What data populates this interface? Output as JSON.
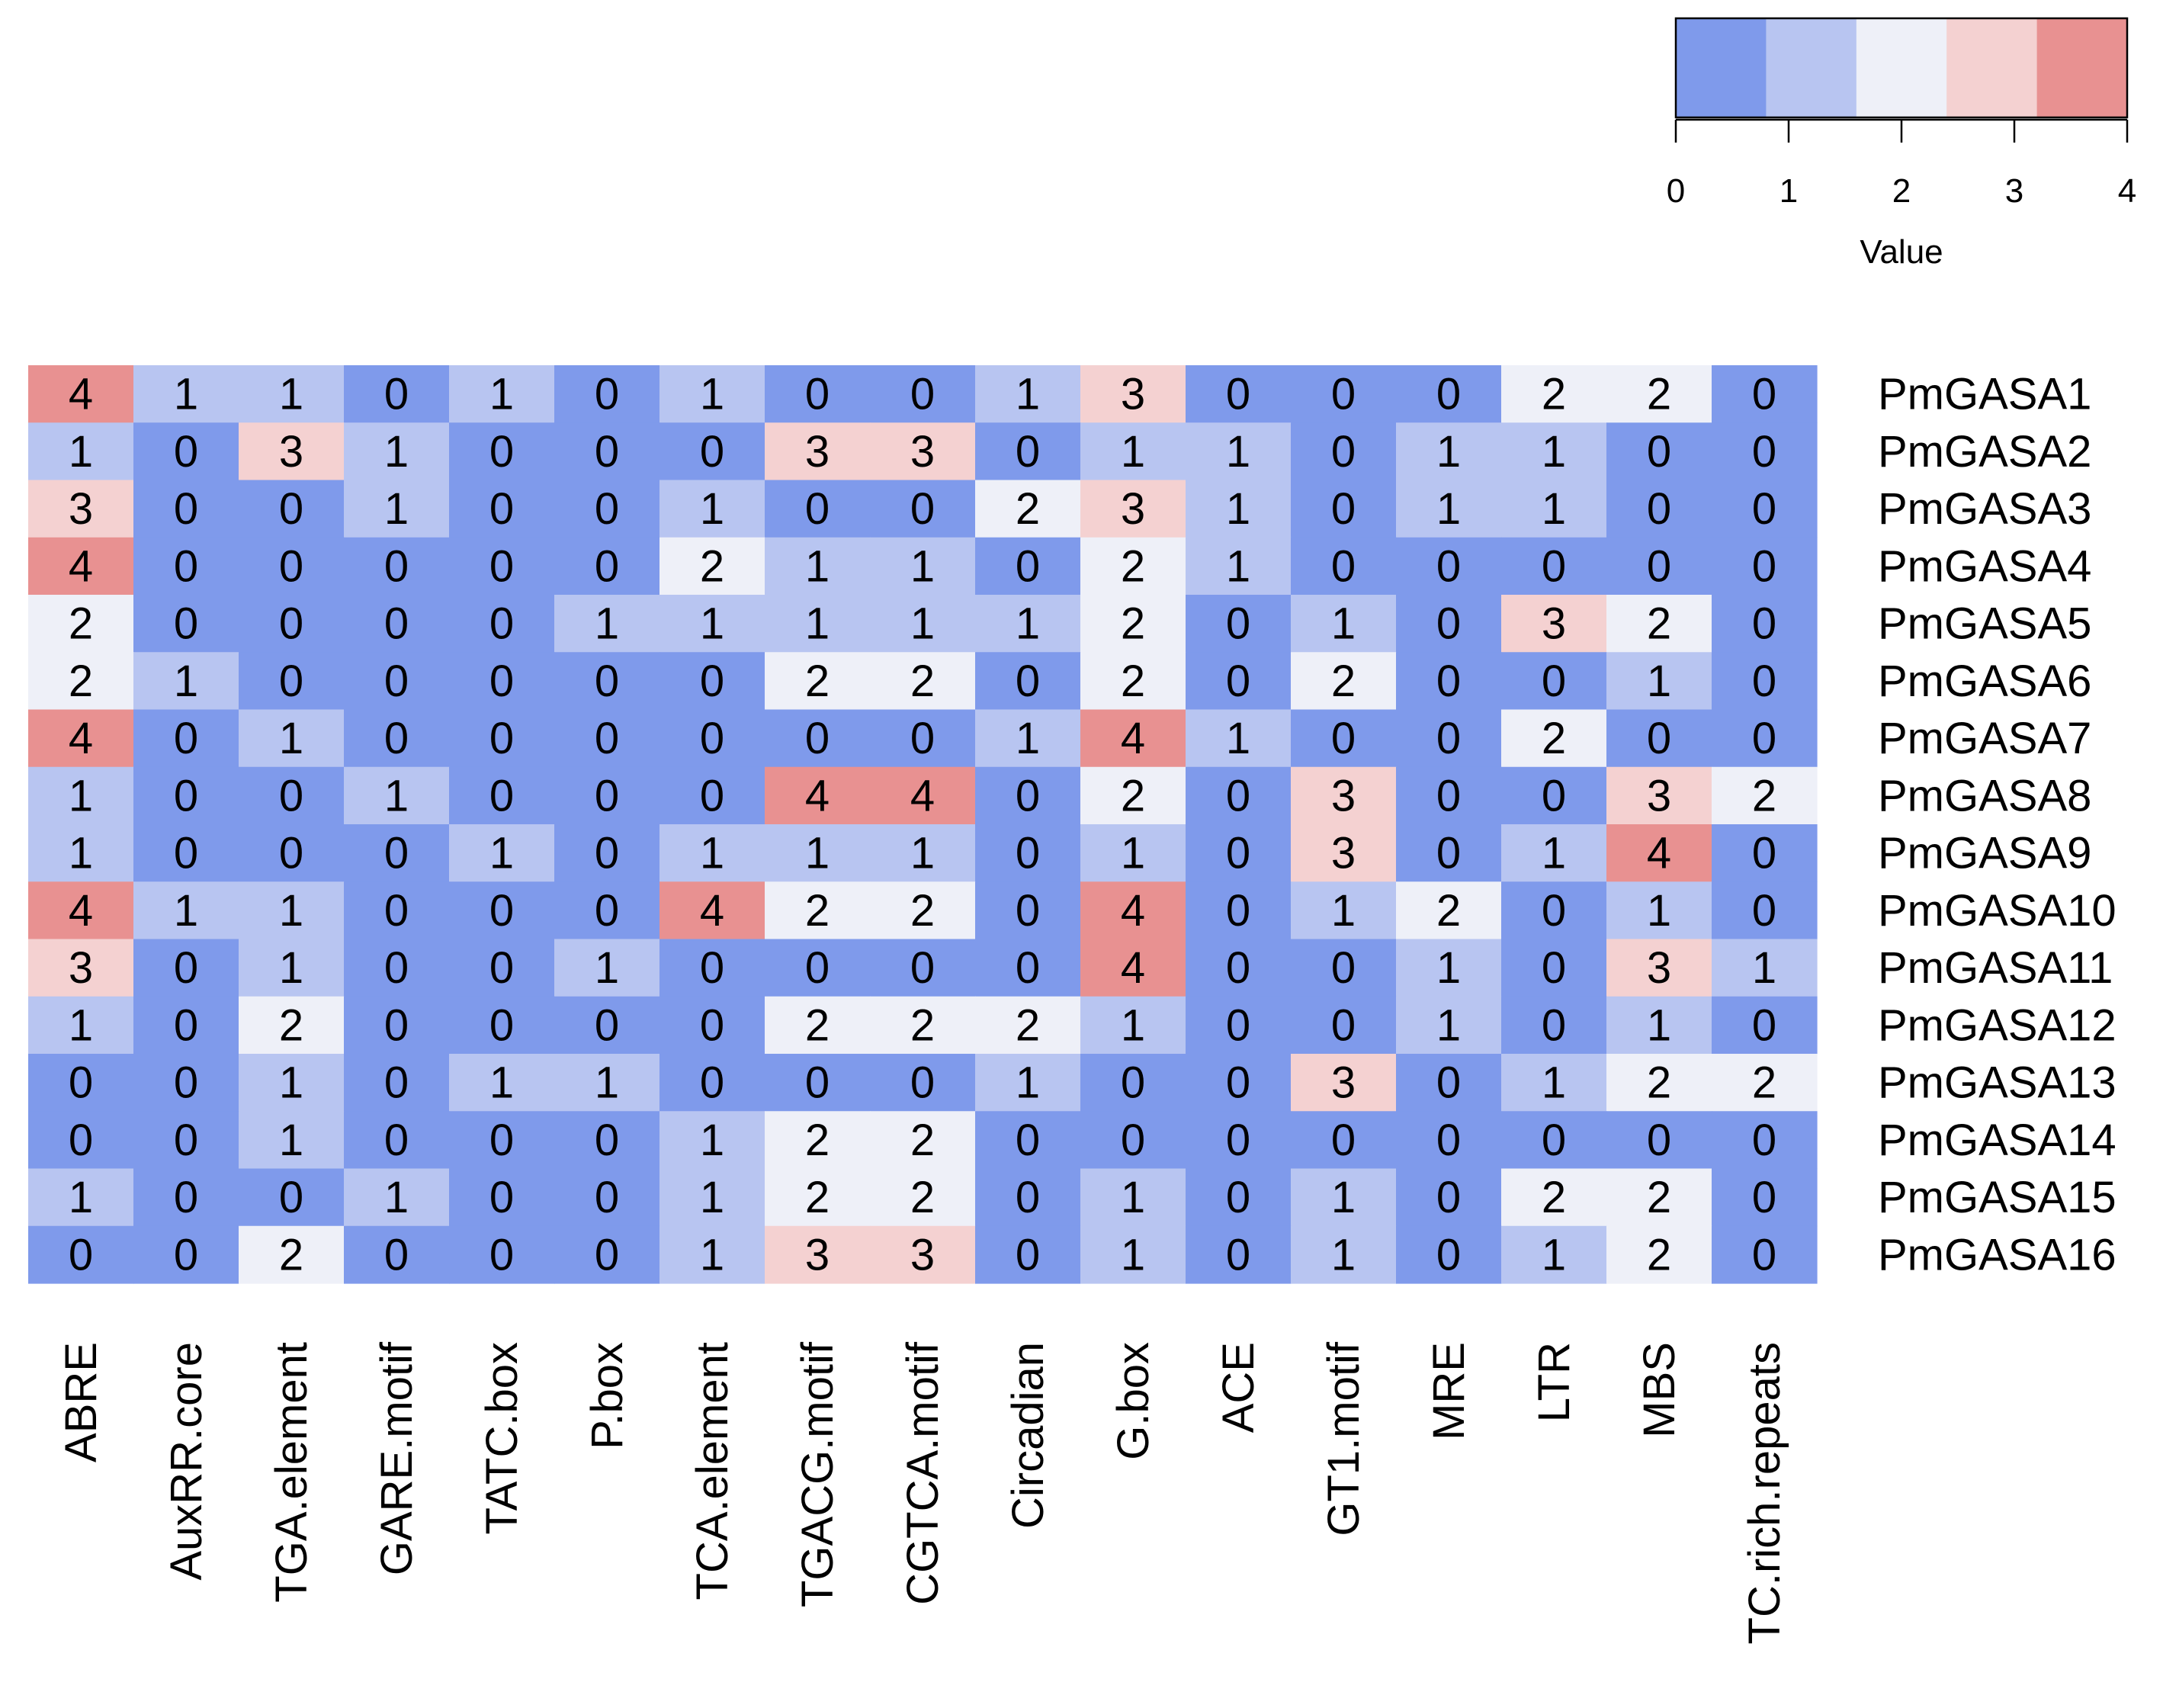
{
  "chart_data": {
    "type": "heatmap",
    "title": "",
    "rows": [
      "PmGASA1",
      "PmGASA2",
      "PmGASA3",
      "PmGASA4",
      "PmGASA5",
      "PmGASA6",
      "PmGASA7",
      "PmGASA8",
      "PmGASA9",
      "PmGASA10",
      "PmGASA11",
      "PmGASA12",
      "PmGASA13",
      "PmGASA14",
      "PmGASA15",
      "PmGASA16"
    ],
    "columns": [
      "ABRE",
      "AuxRR.core",
      "TGA.element",
      "GARE.motif",
      "TATC.box",
      "P.box",
      "TCA.element",
      "TGACG.motif",
      "CGTCA.motif",
      "Circadian",
      "G.box",
      "ACE",
      "GT1.motif",
      "MRE",
      "LTR",
      "MBS",
      "TC.rich.repeats"
    ],
    "values": [
      [
        4,
        1,
        1,
        0,
        1,
        0,
        1,
        0,
        0,
        1,
        3,
        0,
        0,
        0,
        2,
        2,
        0
      ],
      [
        1,
        0,
        3,
        1,
        0,
        0,
        0,
        3,
        3,
        0,
        1,
        1,
        0,
        1,
        1,
        0,
        0
      ],
      [
        3,
        0,
        0,
        1,
        0,
        0,
        1,
        0,
        0,
        2,
        3,
        1,
        0,
        1,
        1,
        0,
        0
      ],
      [
        4,
        0,
        0,
        0,
        0,
        0,
        2,
        1,
        1,
        0,
        2,
        1,
        0,
        0,
        0,
        0,
        0
      ],
      [
        2,
        0,
        0,
        0,
        0,
        1,
        1,
        1,
        1,
        1,
        2,
        0,
        1,
        0,
        3,
        2,
        0
      ],
      [
        2,
        1,
        0,
        0,
        0,
        0,
        0,
        2,
        2,
        0,
        2,
        0,
        2,
        0,
        0,
        1,
        0
      ],
      [
        4,
        0,
        1,
        0,
        0,
        0,
        0,
        0,
        0,
        1,
        4,
        1,
        0,
        0,
        2,
        0,
        0
      ],
      [
        1,
        0,
        0,
        1,
        0,
        0,
        0,
        4,
        4,
        0,
        2,
        0,
        3,
        0,
        0,
        3,
        2
      ],
      [
        1,
        0,
        0,
        0,
        1,
        0,
        1,
        1,
        1,
        0,
        1,
        0,
        3,
        0,
        1,
        4,
        0
      ],
      [
        4,
        1,
        1,
        0,
        0,
        0,
        4,
        2,
        2,
        0,
        4,
        0,
        1,
        2,
        0,
        1,
        0
      ],
      [
        3,
        0,
        1,
        0,
        0,
        1,
        0,
        0,
        0,
        0,
        4,
        0,
        0,
        1,
        0,
        3,
        1
      ],
      [
        1,
        0,
        2,
        0,
        0,
        0,
        0,
        2,
        2,
        2,
        1,
        0,
        0,
        1,
        0,
        1,
        0
      ],
      [
        0,
        0,
        1,
        0,
        1,
        1,
        0,
        0,
        0,
        1,
        0,
        0,
        3,
        0,
        1,
        2,
        2
      ],
      [
        0,
        0,
        1,
        0,
        0,
        0,
        1,
        2,
        2,
        0,
        0,
        0,
        0,
        0,
        0,
        0,
        0
      ],
      [
        1,
        0,
        0,
        1,
        0,
        0,
        1,
        2,
        2,
        0,
        1,
        0,
        1,
        0,
        2,
        2,
        0
      ],
      [
        0,
        0,
        2,
        0,
        0,
        0,
        1,
        3,
        3,
        0,
        1,
        0,
        1,
        0,
        1,
        2,
        0
      ]
    ],
    "colorscale": {
      "range": [
        0,
        4
      ],
      "colors": [
        "#7f9aeb",
        "#b8c5f1",
        "#eef0f8",
        "#f4d1d1",
        "#e89191"
      ]
    },
    "legend": {
      "title": "Value",
      "ticks": [
        "0",
        "1",
        "2",
        "3",
        "4"
      ],
      "position": "top-right"
    }
  }
}
